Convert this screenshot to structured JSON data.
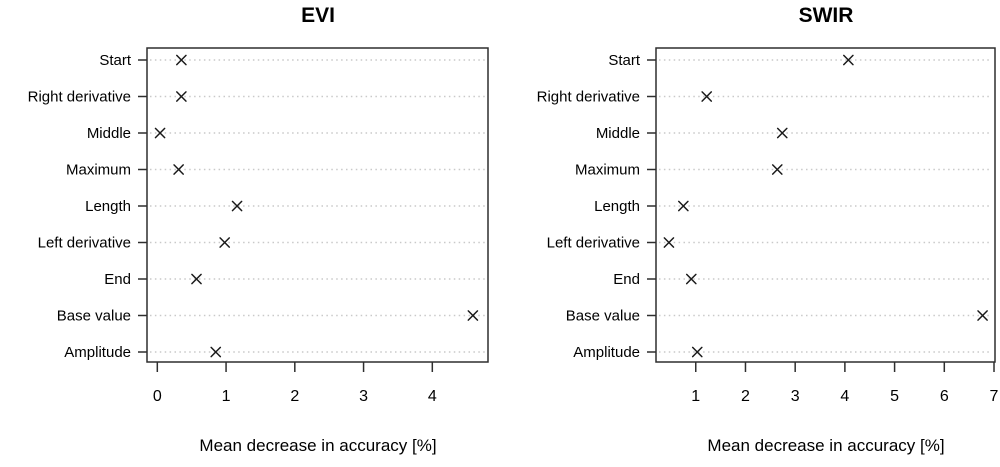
{
  "figure": {
    "colors": {
      "marker": "#1a1a1a",
      "grid": "#c9c9c9",
      "axis": "#2e2e2e",
      "text": "#000000",
      "background": "#ffffff"
    },
    "marker_symbol": "x-cross"
  },
  "chart_data": [
    {
      "type": "scatter",
      "title": "EVI",
      "xlabel": "Mean decrease in accuracy [%]",
      "marker": "x",
      "grid": "dotted horizontal",
      "categories_top_to_bottom": [
        "Start",
        "Right derivative",
        "Middle",
        "Maximum",
        "Length",
        "Left derivative",
        "End",
        "Base value",
        "Amplitude"
      ],
      "values": [
        0.35,
        0.35,
        0.04,
        0.31,
        1.16,
        0.98,
        0.57,
        4.59,
        0.85
      ],
      "xticks": [
        0,
        1,
        2,
        3,
        4
      ],
      "xlim": [
        -0.15,
        4.81
      ]
    },
    {
      "type": "scatter",
      "title": "SWIR",
      "xlabel": "Mean decrease in accuracy [%]",
      "marker": "x",
      "grid": "dotted horizontal",
      "categories_top_to_bottom": [
        "Start",
        "Right derivative",
        "Middle",
        "Maximum",
        "Length",
        "Left derivative",
        "End",
        "Base value",
        "Amplitude"
      ],
      "values": [
        4.07,
        1.22,
        2.74,
        2.64,
        0.75,
        0.46,
        0.91,
        6.77,
        1.03
      ],
      "xticks": [
        1,
        2,
        3,
        4,
        5,
        6,
        7
      ],
      "xlim": [
        0.2,
        7.02
      ]
    }
  ]
}
